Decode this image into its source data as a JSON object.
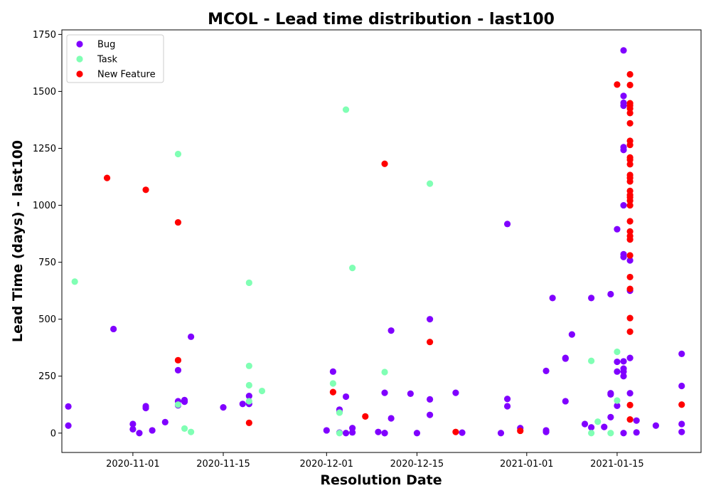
{
  "chart_data": {
    "type": "scatter",
    "title": "MCOL - Lead time distribution - last100",
    "xlabel": "Resolution Date",
    "ylabel": "Lead Time (days) - last100",
    "x_axis": {
      "type": "date",
      "range": [
        "2020-10-21",
        "2021-01-28"
      ],
      "ticks": [
        "2020-11-01",
        "2020-11-15",
        "2020-12-01",
        "2020-12-15",
        "2021-01-01",
        "2021-01-15"
      ]
    },
    "y_axis": {
      "range": [
        -85,
        1770
      ],
      "ticks": [
        0,
        250,
        500,
        750,
        1000,
        1250,
        1500,
        1750
      ]
    },
    "grid": false,
    "legend": {
      "placement": "top-left"
    },
    "series": [
      {
        "name": "Bug",
        "color": "#8000ff",
        "points": [
          [
            "2020-10-22",
            33
          ],
          [
            "2020-10-22",
            117
          ],
          [
            "2020-10-29",
            457
          ],
          [
            "2020-11-01",
            40
          ],
          [
            "2020-11-01",
            17
          ],
          [
            "2020-11-02",
            0
          ],
          [
            "2020-11-03",
            110
          ],
          [
            "2020-11-03",
            118
          ],
          [
            "2020-11-04",
            12
          ],
          [
            "2020-11-06",
            48
          ],
          [
            "2020-11-08",
            276
          ],
          [
            "2020-11-08",
            140
          ],
          [
            "2020-11-08",
            122
          ],
          [
            "2020-11-09",
            138
          ],
          [
            "2020-11-09",
            145
          ],
          [
            "2020-11-10",
            423
          ],
          [
            "2020-11-15",
            113
          ],
          [
            "2020-11-18",
            128
          ],
          [
            "2020-11-19",
            163
          ],
          [
            "2020-11-19",
            128
          ],
          [
            "2020-12-01",
            12
          ],
          [
            "2020-12-02",
            270
          ],
          [
            "2020-12-03",
            103
          ],
          [
            "2020-12-03",
            93
          ],
          [
            "2020-12-03",
            2
          ],
          [
            "2020-12-04",
            0
          ],
          [
            "2020-12-04",
            160
          ],
          [
            "2020-12-05",
            22
          ],
          [
            "2020-12-05",
            3
          ],
          [
            "2020-12-09",
            5
          ],
          [
            "2020-12-10",
            177
          ],
          [
            "2020-12-10",
            0
          ],
          [
            "2020-12-10",
            0
          ],
          [
            "2020-12-11",
            450
          ],
          [
            "2020-12-11",
            65
          ],
          [
            "2020-12-14",
            173
          ],
          [
            "2020-12-15",
            0
          ],
          [
            "2020-12-17",
            500
          ],
          [
            "2020-12-17",
            148
          ],
          [
            "2020-12-17",
            80
          ],
          [
            "2020-12-21",
            177
          ],
          [
            "2020-12-22",
            2
          ],
          [
            "2020-12-29",
            918
          ],
          [
            "2020-12-29",
            150
          ],
          [
            "2020-12-29",
            118
          ],
          [
            "2020-12-28",
            0
          ],
          [
            "2020-12-31",
            22
          ],
          [
            "2021-01-04",
            5
          ],
          [
            "2021-01-04",
            12
          ],
          [
            "2021-01-04",
            273
          ],
          [
            "2021-01-05",
            593
          ],
          [
            "2021-01-07",
            330
          ],
          [
            "2021-01-07",
            327
          ],
          [
            "2021-01-07",
            140
          ],
          [
            "2021-01-08",
            433
          ],
          [
            "2021-01-10",
            40
          ],
          [
            "2021-01-11",
            593
          ],
          [
            "2021-01-11",
            25
          ],
          [
            "2021-01-13",
            27
          ],
          [
            "2021-01-14",
            610
          ],
          [
            "2021-01-14",
            175
          ],
          [
            "2021-01-14",
            170
          ],
          [
            "2021-01-14",
            70
          ],
          [
            "2021-01-15",
            895
          ],
          [
            "2021-01-15",
            313
          ],
          [
            "2021-01-15",
            270
          ],
          [
            "2021-01-15",
            120
          ],
          [
            "2021-01-16",
            1680
          ],
          [
            "2021-01-16",
            1480
          ],
          [
            "2021-01-16",
            1450
          ],
          [
            "2021-01-16",
            1437
          ],
          [
            "2021-01-16",
            1255
          ],
          [
            "2021-01-16",
            1243
          ],
          [
            "2021-01-16",
            1000
          ],
          [
            "2021-01-16",
            785
          ],
          [
            "2021-01-16",
            773
          ],
          [
            "2021-01-16",
            315
          ],
          [
            "2021-01-16",
            283
          ],
          [
            "2021-01-16",
            270
          ],
          [
            "2021-01-16",
            250
          ],
          [
            "2021-01-16",
            0
          ],
          [
            "2021-01-17",
            758
          ],
          [
            "2021-01-17",
            625
          ],
          [
            "2021-01-17",
            330
          ],
          [
            "2021-01-17",
            175
          ],
          [
            "2021-01-18",
            55
          ],
          [
            "2021-01-18",
            3
          ],
          [
            "2021-01-21",
            33
          ],
          [
            "2021-01-25",
            348
          ],
          [
            "2021-01-25",
            207
          ],
          [
            "2021-01-25",
            40
          ],
          [
            "2021-01-25",
            5
          ]
        ]
      },
      {
        "name": "Task",
        "color": "#80ffb4",
        "points": [
          [
            "2020-10-23",
            665
          ],
          [
            "2020-11-08",
            1225
          ],
          [
            "2020-11-08",
            125
          ],
          [
            "2020-11-09",
            20
          ],
          [
            "2020-11-10",
            5
          ],
          [
            "2020-11-19",
            660
          ],
          [
            "2020-11-19",
            295
          ],
          [
            "2020-11-19",
            210
          ],
          [
            "2020-11-19",
            140
          ],
          [
            "2020-11-21",
            185
          ],
          [
            "2020-12-02",
            218
          ],
          [
            "2020-12-03",
            90
          ],
          [
            "2020-12-03",
            0
          ],
          [
            "2020-12-04",
            1420
          ],
          [
            "2020-12-05",
            725
          ],
          [
            "2020-12-10",
            268
          ],
          [
            "2020-12-17",
            1095
          ],
          [
            "2021-01-11",
            317
          ],
          [
            "2021-01-11",
            0
          ],
          [
            "2021-01-12",
            50
          ],
          [
            "2021-01-14",
            0
          ],
          [
            "2021-01-15",
            357
          ],
          [
            "2021-01-15",
            143
          ]
        ]
      },
      {
        "name": "New Feature",
        "color": "#ff0000",
        "points": [
          [
            "2020-10-28",
            1120
          ],
          [
            "2020-11-03",
            1068
          ],
          [
            "2020-11-08",
            925
          ],
          [
            "2020-11-08",
            320
          ],
          [
            "2020-11-19",
            45
          ],
          [
            "2020-12-02",
            180
          ],
          [
            "2020-12-07",
            73
          ],
          [
            "2020-12-10",
            1182
          ],
          [
            "2020-12-17",
            400
          ],
          [
            "2020-12-21",
            5
          ],
          [
            "2020-12-31",
            10
          ],
          [
            "2021-01-15",
            1530
          ],
          [
            "2021-01-17",
            1575
          ],
          [
            "2021-01-17",
            1528
          ],
          [
            "2021-01-17",
            1448
          ],
          [
            "2021-01-17",
            1438
          ],
          [
            "2021-01-17",
            1425
          ],
          [
            "2021-01-17",
            1405
          ],
          [
            "2021-01-17",
            1360
          ],
          [
            "2021-01-17",
            1283
          ],
          [
            "2021-01-17",
            1265
          ],
          [
            "2021-01-17",
            1210
          ],
          [
            "2021-01-17",
            1200
          ],
          [
            "2021-01-17",
            1180
          ],
          [
            "2021-01-17",
            1133
          ],
          [
            "2021-01-17",
            1120
          ],
          [
            "2021-01-17",
            1105
          ],
          [
            "2021-01-17",
            1063
          ],
          [
            "2021-01-17",
            1045
          ],
          [
            "2021-01-17",
            1035
          ],
          [
            "2021-01-17",
            1020
          ],
          [
            "2021-01-17",
            1000
          ],
          [
            "2021-01-17",
            930
          ],
          [
            "2021-01-17",
            885
          ],
          [
            "2021-01-17",
            865
          ],
          [
            "2021-01-17",
            850
          ],
          [
            "2021-01-17",
            780
          ],
          [
            "2021-01-17",
            685
          ],
          [
            "2021-01-17",
            633
          ],
          [
            "2021-01-17",
            505
          ],
          [
            "2021-01-17",
            445
          ],
          [
            "2021-01-17",
            123
          ],
          [
            "2021-01-17",
            60
          ],
          [
            "2021-01-25",
            125
          ]
        ]
      }
    ]
  }
}
